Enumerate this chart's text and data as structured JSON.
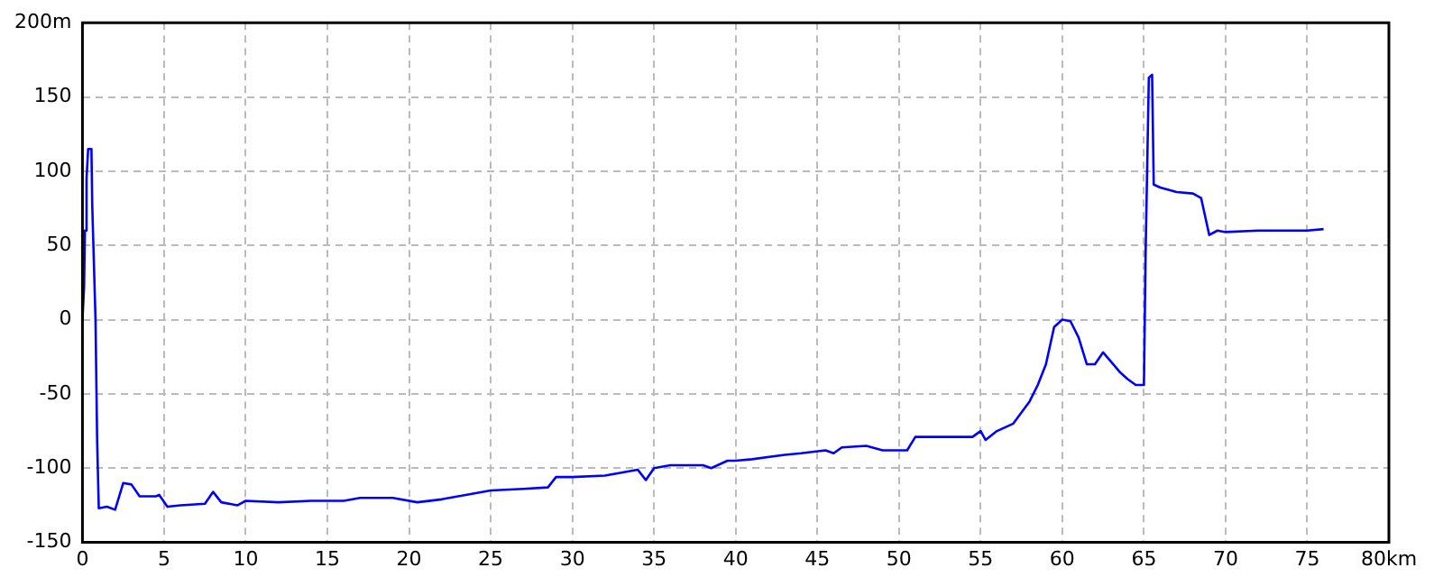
{
  "chart_data": {
    "type": "line",
    "x": [
      0,
      0.1,
      0.15,
      0.25,
      0.35,
      0.55,
      0.6,
      0.8,
      0.9,
      1.0,
      1.5,
      2.0,
      2.5,
      3.0,
      3.5,
      4.5,
      4.7,
      5.2,
      6.0,
      7.5,
      8.0,
      8.5,
      9.5,
      10,
      12,
      14,
      16,
      17,
      19,
      20.5,
      22,
      23,
      24,
      25,
      27,
      28.5,
      29,
      30,
      32,
      33,
      34,
      34.5,
      35,
      36,
      38,
      38.5,
      39.5,
      40,
      41,
      43,
      44,
      45.5,
      46,
      46.5,
      48,
      49,
      50.5,
      51,
      53,
      54.5,
      55,
      55.3,
      56,
      57,
      58,
      58.5,
      59,
      59.5,
      60,
      60.5,
      61,
      61.5,
      62,
      62.5,
      63.5,
      64,
      64.5,
      65,
      65.1,
      65.3,
      65.5,
      65.6,
      66,
      67,
      68,
      68.5,
      69,
      69.5,
      70,
      72,
      75,
      76
    ],
    "series": [
      {
        "color": "#0000ff",
        "values": [
          0,
          22,
          60,
          95,
          115,
          115,
          77,
          0,
          -82,
          -127,
          -126,
          -128,
          -110,
          -111,
          -119,
          -119,
          -118,
          -126,
          -125,
          -124,
          -116,
          -123,
          -125,
          -122,
          -123,
          -122,
          -122,
          -120,
          -120,
          -123,
          -121,
          -119,
          -117,
          -115,
          -114,
          -113,
          -106,
          -106,
          -105,
          -103,
          -101,
          -108,
          -100,
          -98,
          -98,
          -100,
          -95,
          -95,
          -94,
          -91,
          -90,
          -88,
          -90,
          -86,
          -85,
          -88,
          -88,
          -79,
          -79,
          -79,
          -75,
          -81,
          -75,
          -70,
          -55,
          -44,
          -30,
          -5,
          0,
          -1,
          -12,
          -30,
          -30,
          -22,
          -35,
          -40,
          -44,
          -44,
          43,
          163,
          165,
          91,
          89,
          86,
          85,
          82,
          57,
          60,
          59,
          60,
          60,
          61
        ]
      }
    ],
    "xlim": [
      0,
      80
    ],
    "xticks": [
      0,
      5,
      10,
      15,
      20,
      25,
      30,
      35,
      40,
      45,
      50,
      55,
      60,
      65,
      70,
      75,
      {
        "value": 80,
        "label": "80km"
      }
    ],
    "ylim": [
      -150,
      200
    ],
    "yticks": [
      -150,
      -100,
      -50,
      0,
      50,
      100,
      150,
      {
        "value": 200,
        "label": "200m"
      }
    ],
    "grid": true,
    "line_style": "solid",
    "marker": "none",
    "legend": false
  }
}
